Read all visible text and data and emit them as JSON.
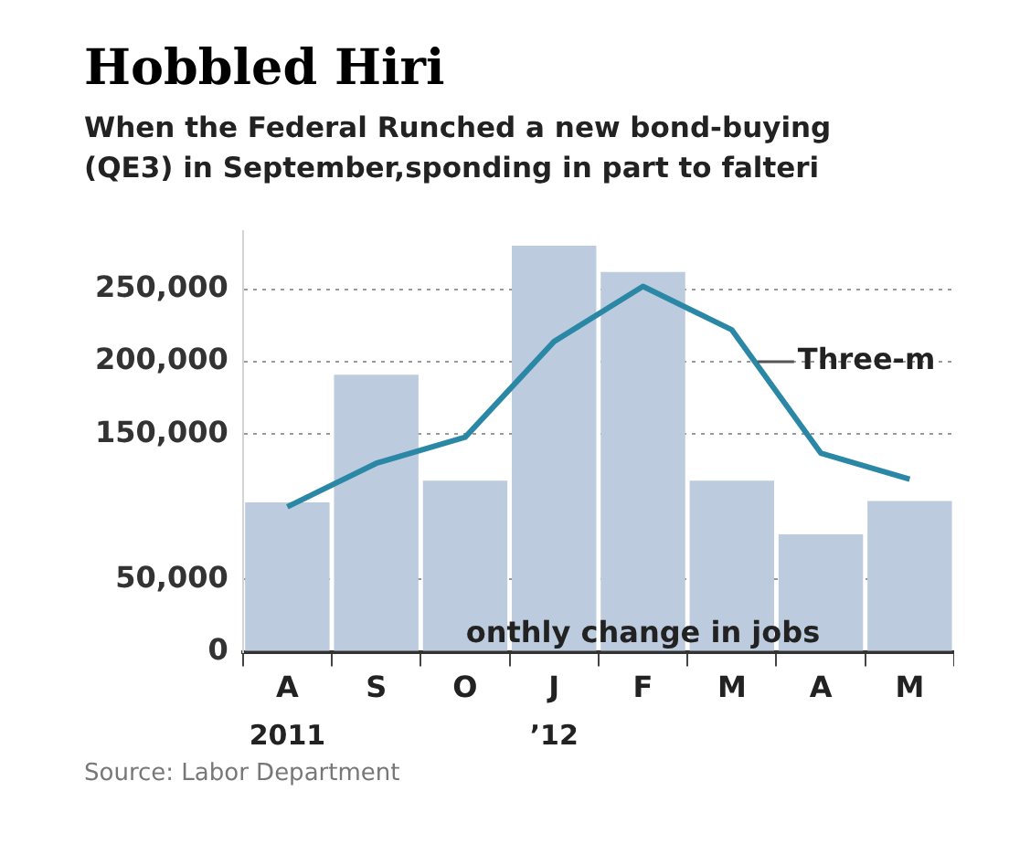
{
  "chart_data": {
    "type": "bar",
    "title": "Hobbled Hiri",
    "subtitle": "When the Federal Runched a new bond-buying\n(QE3) in September,sponding in part to falteri",
    "categories": [
      "A",
      "S",
      "O",
      "J",
      "F",
      "M",
      "A",
      "M"
    ],
    "series": [
      {
        "color": "#bccbdd",
        "values": [
          103000,
          191000,
          118000,
          280000,
          262000,
          118000,
          81000,
          104000
        ]
      },
      {
        "type": "line",
        "color": "#2a88a6",
        "values": [
          100000,
          130000,
          148000,
          214000,
          252000,
          222000,
          137000,
          119000
        ]
      }
    ],
    "ylim": [
      0,
      290000
    ],
    "yticks": [
      0,
      {
        "value": 50000,
        "label": "50,000"
      },
      {
        "value": 150000,
        "label": "150,000"
      },
      {
        "value": 200000,
        "label": "200,000"
      },
      {
        "value": 250000,
        "label": "250,000"
      }
    ],
    "grid": "y",
    "line_style": "solid",
    "marker": "none",
    "legend": false,
    "annotations": [
      "Three-m",
      "onthly change in jobs",
      "2011",
      "’12",
      "Source: Labor Department"
    ]
  }
}
